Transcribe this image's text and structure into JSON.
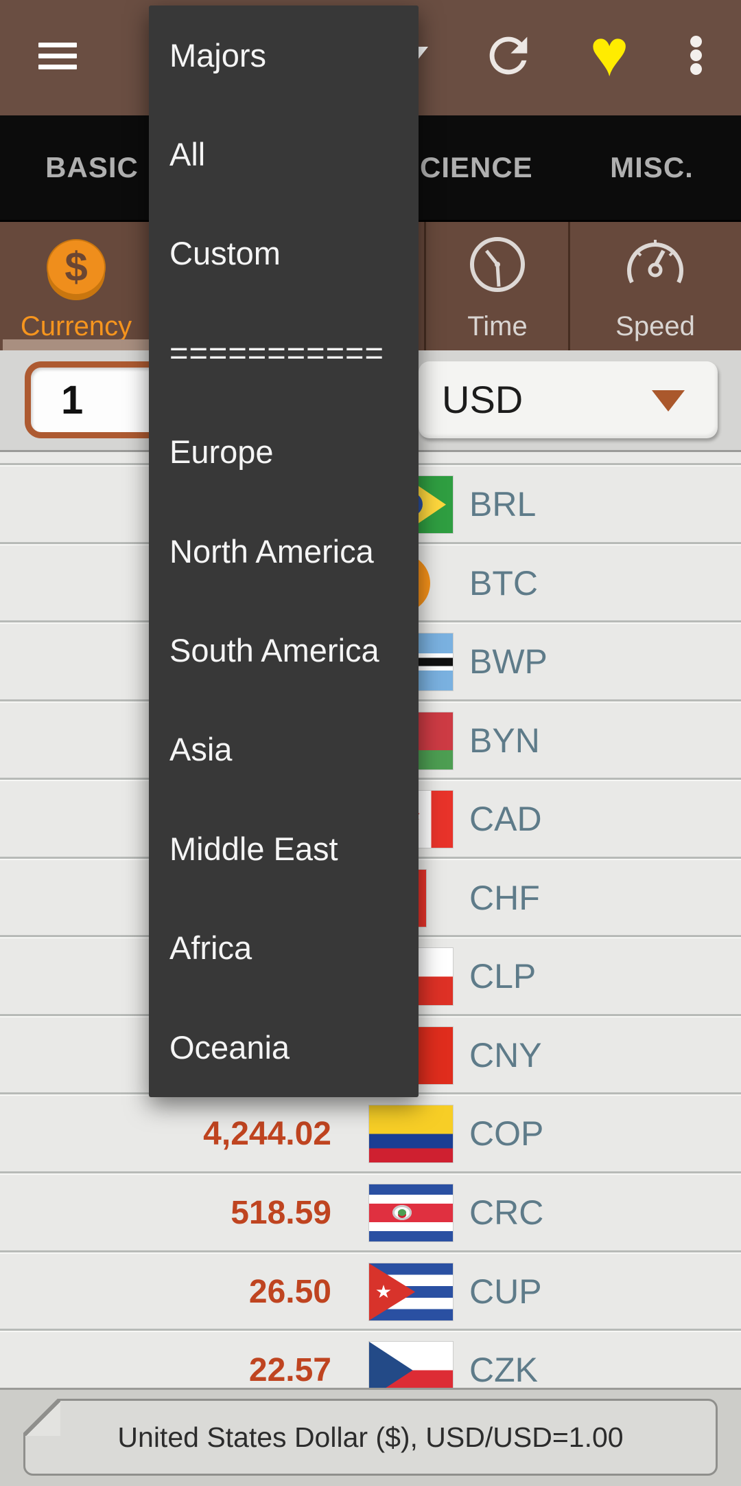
{
  "appbar": {
    "icons": {
      "menu": "hamburger",
      "refresh": "refresh",
      "favorite": "heart",
      "overflow": "more-vertical",
      "title_spinner": "caret-down"
    },
    "heart_glyph": "♥"
  },
  "tabbar": {
    "tabs": [
      {
        "label": "BASIC"
      },
      {
        "label": "CIENCE"
      },
      {
        "label": "MISC."
      }
    ]
  },
  "toolbar": {
    "tabs": [
      {
        "label": "Currency",
        "icon": "dollar-coin",
        "selected": true
      },
      {
        "label": "Time",
        "icon": "clock",
        "selected": false
      },
      {
        "label": "Speed",
        "icon": "speedometer",
        "selected": false
      }
    ]
  },
  "converter": {
    "amount": "1",
    "currency": "USD"
  },
  "menu": {
    "items": [
      "Majors",
      "All",
      "Custom",
      "===========",
      "Europe",
      "North America",
      "South America",
      "Asia",
      "Middle East",
      "Africa",
      "Oceania"
    ]
  },
  "rates": [
    {
      "value": "",
      "code": "BRL"
    },
    {
      "value": "",
      "code": "BTC"
    },
    {
      "value": "",
      "code": "BWP"
    },
    {
      "value": "",
      "code": "BYN"
    },
    {
      "value": "",
      "code": "CAD"
    },
    {
      "value": "",
      "code": "CHF"
    },
    {
      "value": "",
      "code": "CLP"
    },
    {
      "value": "",
      "code": "CNY"
    },
    {
      "value": "4,244.02",
      "code": "COP"
    },
    {
      "value": "518.59",
      "code": "CRC"
    },
    {
      "value": "26.50",
      "code": "CUP"
    },
    {
      "value": "22.57",
      "code": "CZK"
    }
  ],
  "statusbar": {
    "text": "United States Dollar ($), USD/USD=1.00"
  },
  "colors": {
    "appbar_brown": "#6a4e42",
    "toolbar_brown": "#67493c",
    "accent_orange": "#f6951e",
    "value_red": "#bf4420",
    "code_slate": "#5e7b89",
    "heart_yellow": "#ffec00",
    "menu_dark": "#383838"
  }
}
